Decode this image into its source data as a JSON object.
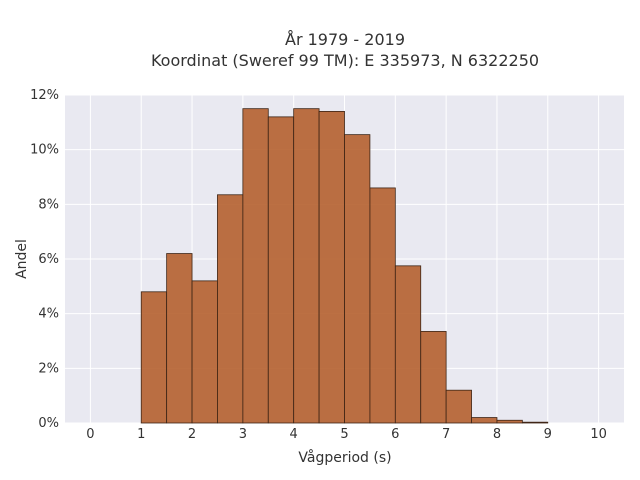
{
  "chart_data": {
    "type": "bar",
    "title_line1": "År 1979 - 2019",
    "title_line2": "Koordinat (Sweref 99 TM): E 335973, N 6322250",
    "xlabel": "Vågperiod (s)",
    "ylabel": "Andel",
    "xlim": [
      -0.5,
      10.5
    ],
    "ylim": [
      0,
      12
    ],
    "x_ticks": [
      0,
      1,
      2,
      3,
      4,
      5,
      6,
      7,
      8,
      9,
      10
    ],
    "y_ticks": [
      0,
      2,
      4,
      6,
      8,
      10,
      12
    ],
    "y_tick_labels": [
      "0%",
      "2%",
      "4%",
      "6%",
      "8%",
      "10%",
      "12%"
    ],
    "bin_width": 0.5,
    "bins": [
      {
        "start": 1.0,
        "value": 4.8
      },
      {
        "start": 1.5,
        "value": 6.2
      },
      {
        "start": 2.0,
        "value": 5.2
      },
      {
        "start": 2.5,
        "value": 8.35
      },
      {
        "start": 3.0,
        "value": 11.5
      },
      {
        "start": 3.5,
        "value": 11.2
      },
      {
        "start": 4.0,
        "value": 11.5
      },
      {
        "start": 4.5,
        "value": 11.4
      },
      {
        "start": 5.0,
        "value": 10.55
      },
      {
        "start": 5.5,
        "value": 8.6
      },
      {
        "start": 6.0,
        "value": 5.75
      },
      {
        "start": 6.5,
        "value": 3.35
      },
      {
        "start": 7.0,
        "value": 1.2
      },
      {
        "start": 7.5,
        "value": 0.2
      },
      {
        "start": 8.0,
        "value": 0.1
      },
      {
        "start": 8.5,
        "value": 0.03
      }
    ],
    "grid": true,
    "bar_color": "#b5602f",
    "bar_edge_color": "#3d2415",
    "plot_background": "#e9e9f1",
    "grid_color": "#ffffff"
  }
}
